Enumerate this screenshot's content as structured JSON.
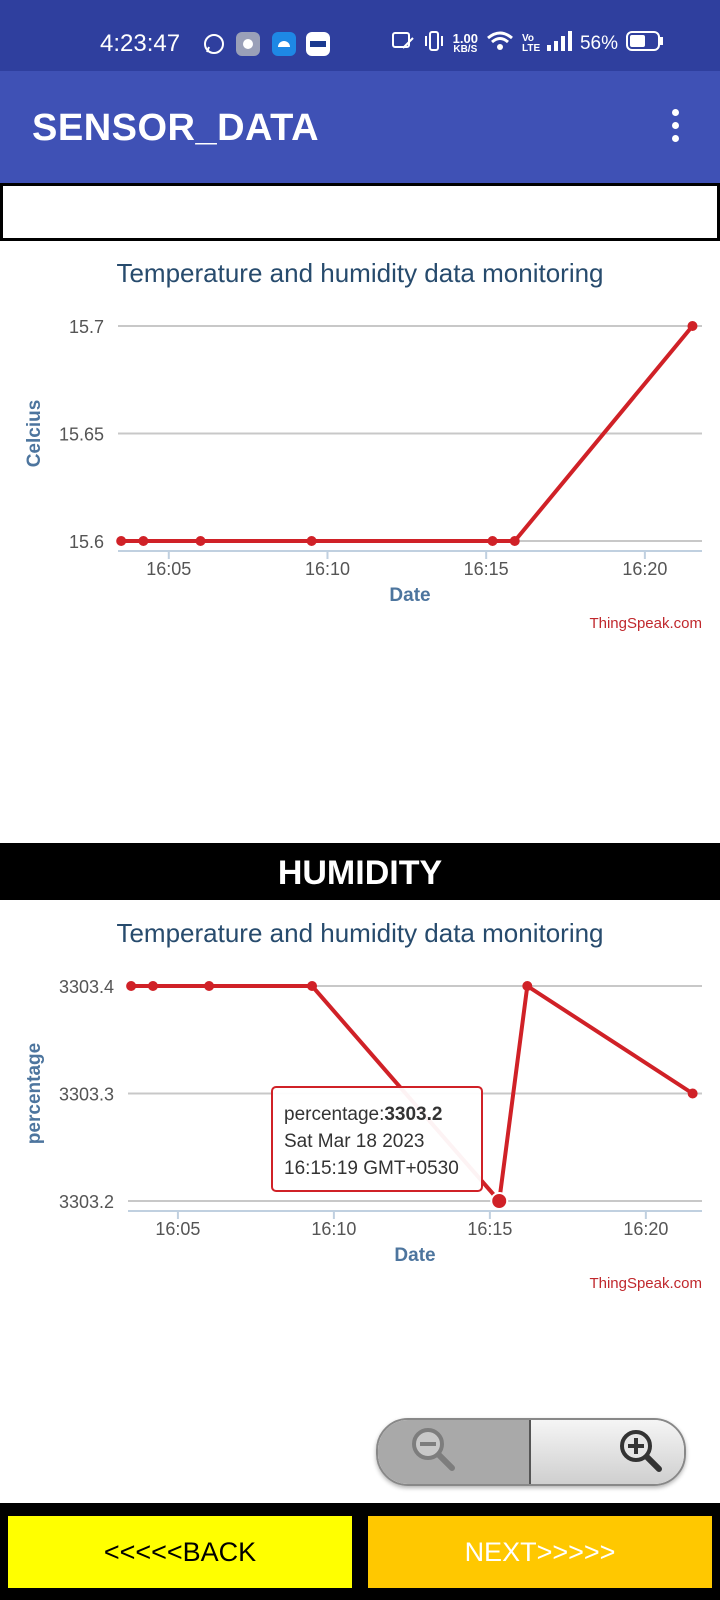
{
  "status_bar": {
    "time": "4:23:47",
    "net_speed_value": "1.00",
    "net_speed_unit": "KB/S",
    "battery": "56%",
    "volte": "Vo LTE",
    "icons": [
      "whatsapp-icon",
      "settings-app-icon",
      "android-app-icon",
      "paytm-icon",
      "no-sim-icon",
      "vibrate-icon",
      "wifi-icon",
      "volte-icon",
      "signal-icon",
      "battery-icon"
    ]
  },
  "app_bar": {
    "title": "SENSOR_DATA",
    "menu_icon": "overflow-menu-icon"
  },
  "humidity_banner": "HUMIDITY",
  "colors": {
    "status_bar": "#2f3f9e",
    "app_bar": "#3f51b5",
    "series": "#d02127",
    "back_button": "#ffff00",
    "next_button": "#ffc800"
  },
  "chart_data": [
    {
      "type": "line",
      "title": "Temperature and humidity data monitoring",
      "xlabel": "Date",
      "ylabel": "Celcius",
      "credit": "ThingSpeak.com",
      "x_ticks": [
        "16:05",
        "16:10",
        "16:15",
        "16:20"
      ],
      "x_ticks_min": [
        5,
        10,
        15,
        20
      ],
      "xlim_min": [
        3.4,
        21.8
      ],
      "y_ticks": [
        "15.6",
        "15.65",
        "15.7"
      ],
      "ylim": [
        15.6,
        15.7
      ],
      "grid": true,
      "series": [
        {
          "x_min": [
            3.5,
            4.2,
            6.0,
            9.5,
            15.2,
            15.9,
            21.5
          ],
          "values": [
            15.6,
            15.6,
            15.6,
            15.6,
            15.6,
            15.6,
            15.7
          ]
        }
      ]
    },
    {
      "type": "line",
      "title": "Temperature and humidity data monitoring",
      "xlabel": "Date",
      "ylabel": "percentage",
      "credit": "ThingSpeak.com",
      "x_ticks": [
        "16:05",
        "16:10",
        "16:15",
        "16:20"
      ],
      "x_ticks_min": [
        5,
        10,
        15,
        20
      ],
      "xlim_min": [
        3.4,
        21.8
      ],
      "y_ticks": [
        "3303.2",
        "3303.3",
        "3303.4"
      ],
      "ylim": [
        3303.2,
        3303.4
      ],
      "grid": true,
      "series": [
        {
          "x_min": [
            3.5,
            4.2,
            6.0,
            9.3,
            15.3,
            16.2,
            21.5
          ],
          "values": [
            3303.4,
            3303.4,
            3303.4,
            3303.4,
            3303.2,
            3303.4,
            3303.3
          ]
        }
      ],
      "tooltip": {
        "label": "percentage:",
        "value": "3303.2",
        "date": "Sat Mar 18 2023",
        "time": "16:15:19 GMT+0530",
        "point_index": 4
      }
    }
  ],
  "zoom_controls": {
    "zoom_out_icon": "zoom-out-icon",
    "zoom_in_icon": "zoom-in-icon"
  },
  "buttons": {
    "back": "<<<<<BACK",
    "next": "NEXT>>>>>"
  }
}
